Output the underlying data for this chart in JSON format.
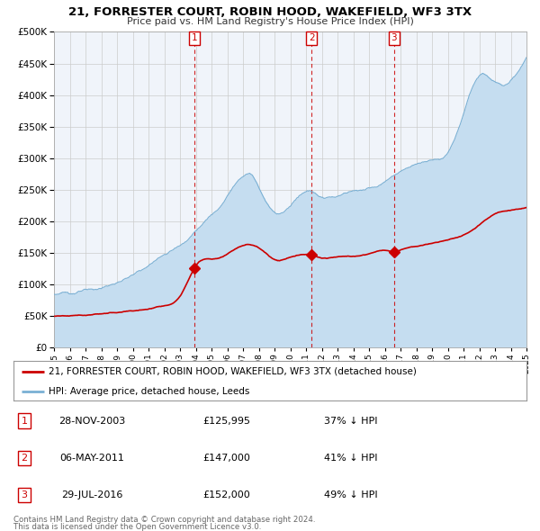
{
  "title": "21, FORRESTER COURT, ROBIN HOOD, WAKEFIELD, WF3 3TX",
  "subtitle": "Price paid vs. HM Land Registry's House Price Index (HPI)",
  "legend_line1": "21, FORRESTER COURT, ROBIN HOOD, WAKEFIELD, WF3 3TX (detached house)",
  "legend_line2": "HPI: Average price, detached house, Leeds",
  "footer1": "Contains HM Land Registry data © Crown copyright and database right 2024.",
  "footer2": "This data is licensed under the Open Government Licence v3.0.",
  "transactions": [
    {
      "num": 1,
      "date": "28-NOV-2003",
      "price": "£125,995",
      "pct": "37% ↓ HPI",
      "year": 2003.91,
      "value": 125995
    },
    {
      "num": 2,
      "date": "06-MAY-2011",
      "price": "£147,000",
      "pct": "41% ↓ HPI",
      "year": 2011.35,
      "value": 147000
    },
    {
      "num": 3,
      "date": "29-JUL-2016",
      "price": "£152,000",
      "pct": "49% ↓ HPI",
      "year": 2016.58,
      "value": 152000
    }
  ],
  "vline_years": [
    2003.91,
    2011.35,
    2016.58
  ],
  "hpi_line_color": "#7ab0d4",
  "hpi_fill_color": "#c5ddf0",
  "price_color": "#cc0000",
  "marker_color": "#cc0000",
  "grid_color": "#cccccc",
  "bg_color": "#f0f4fa",
  "ylim": [
    0,
    500000
  ],
  "xlim_start": 1995,
  "xlim_end": 2025
}
